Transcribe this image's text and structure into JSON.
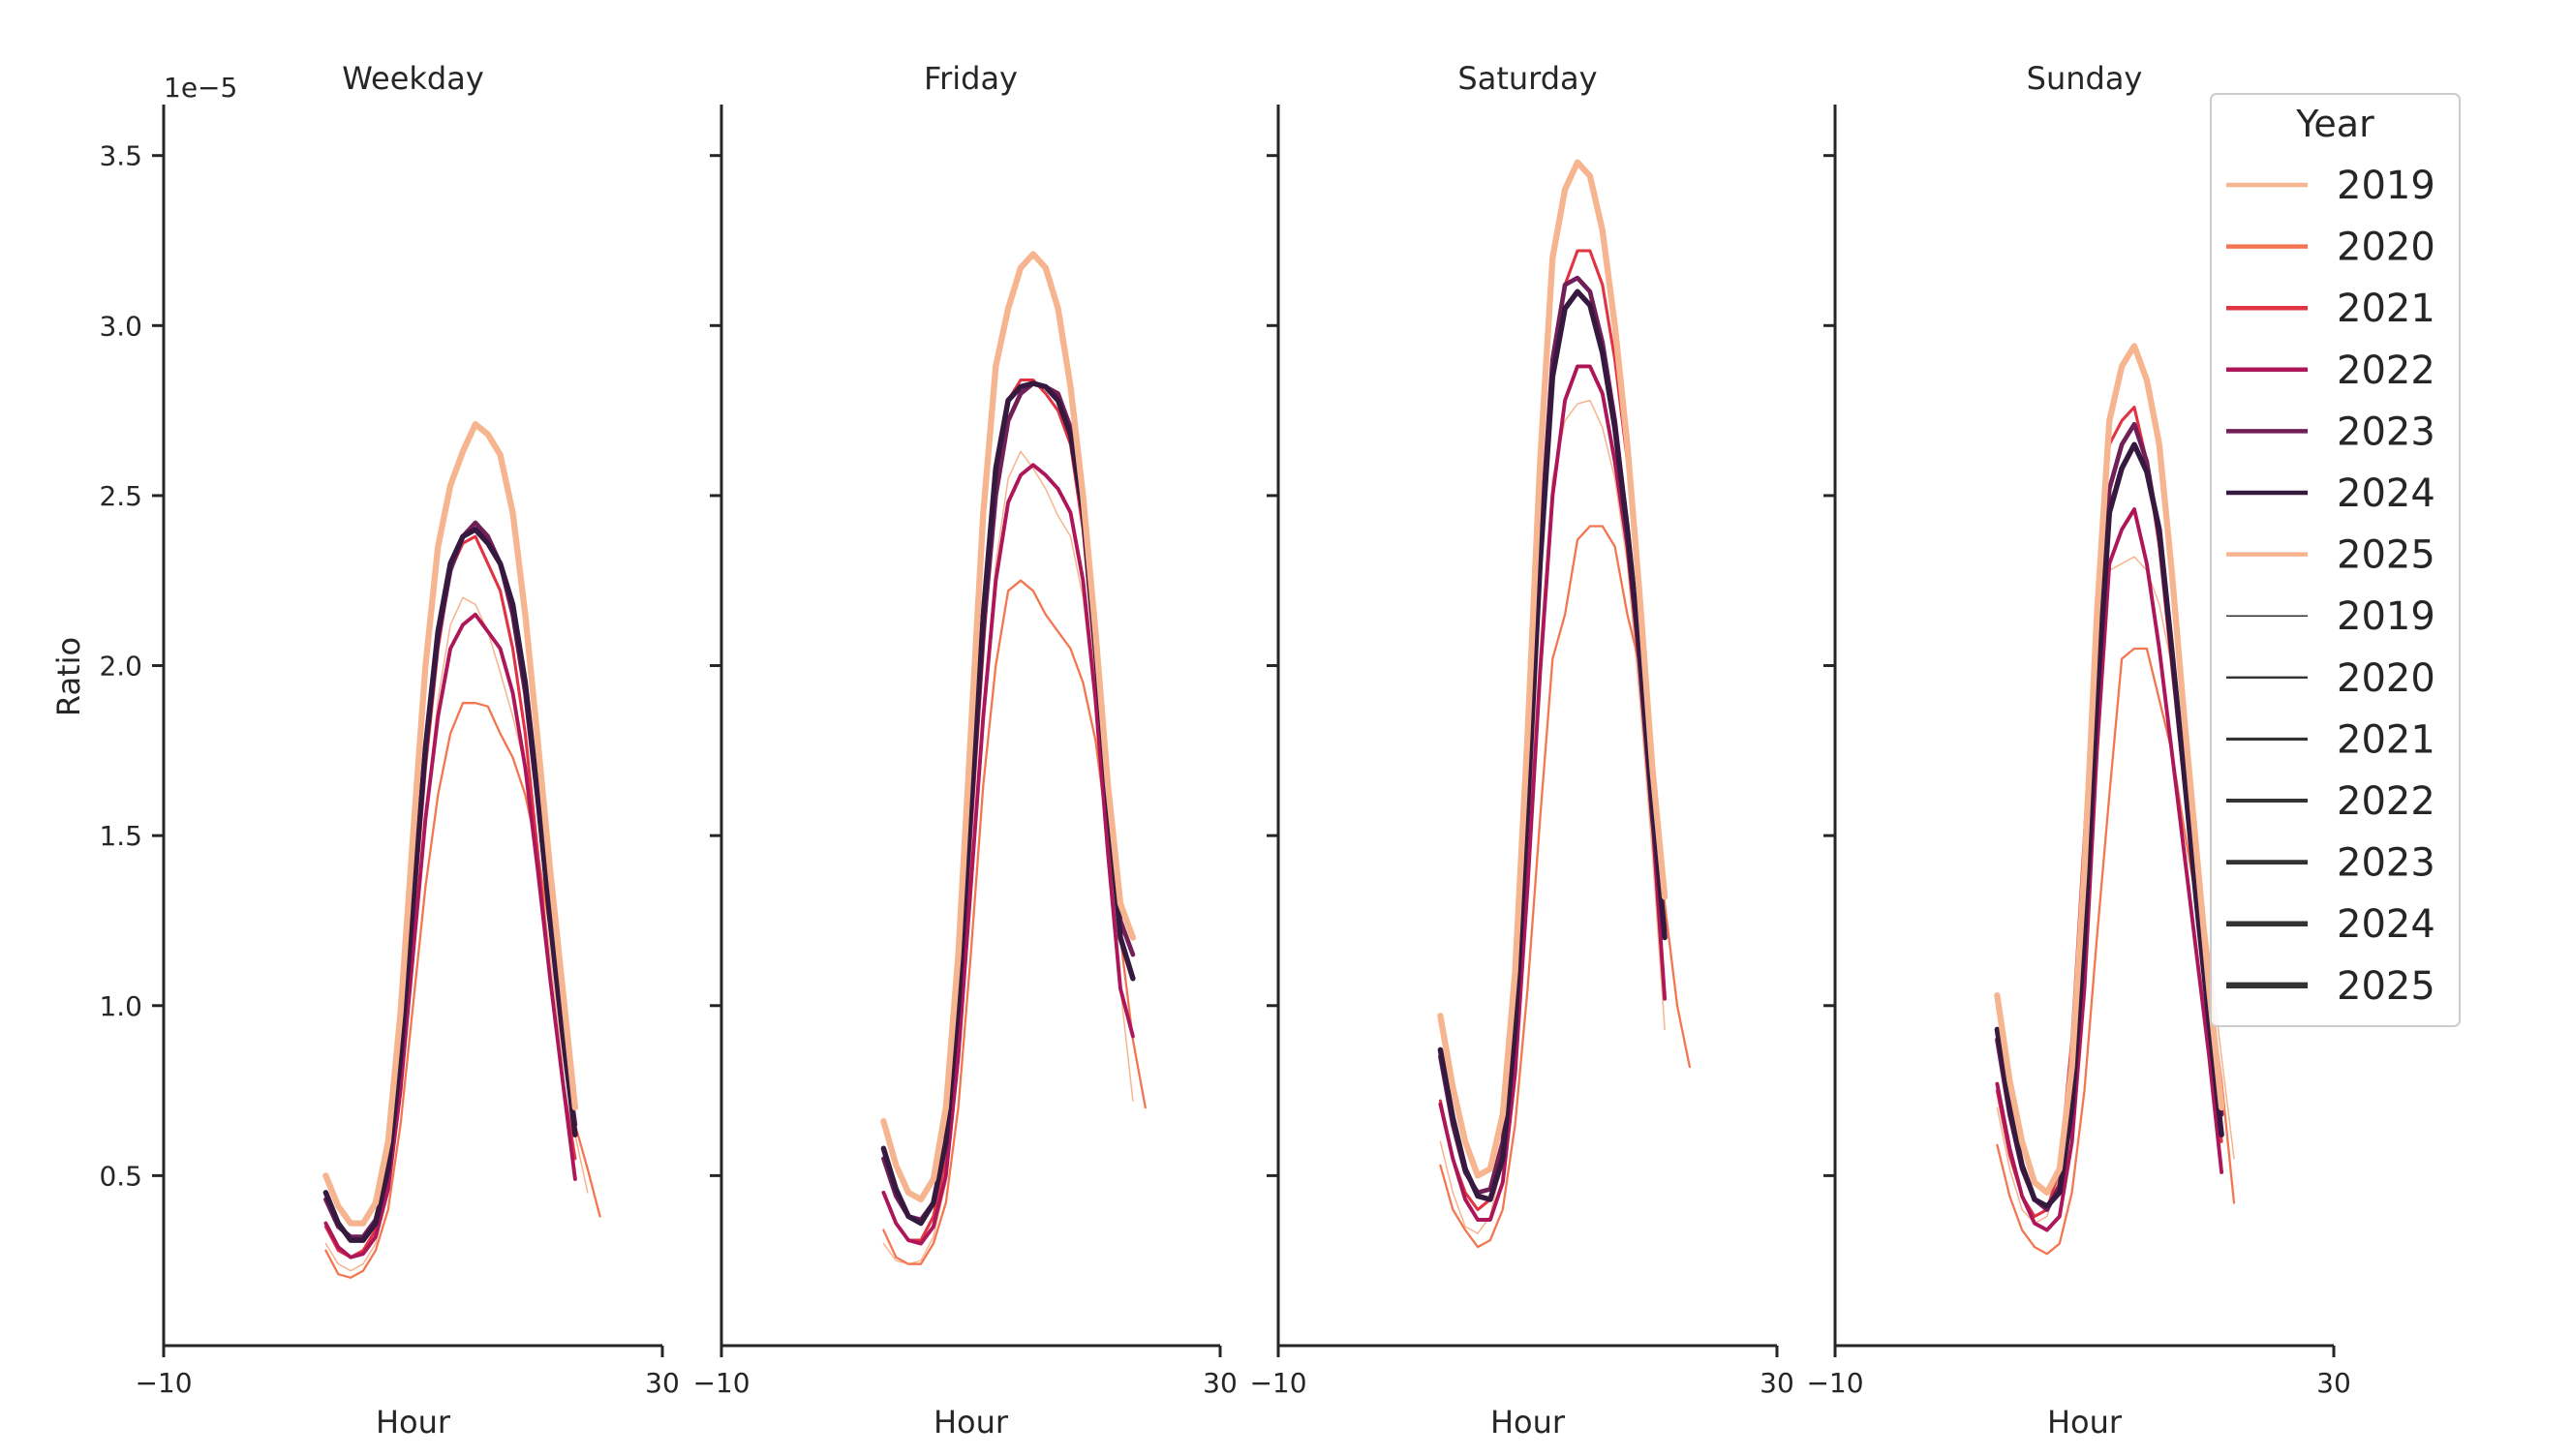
{
  "chart_data": {
    "type": "line",
    "ylabel": "Ratio",
    "xlabel": "Hour",
    "y_scale_label": "1e−5",
    "y_multiplier": 1e-05,
    "xlim": [
      -10,
      30
    ],
    "ylim": [
      0.0,
      3.65
    ],
    "x_ticks": [
      -10,
      30
    ],
    "x_tick_labels": [
      "−10",
      "30"
    ],
    "y_ticks": [
      0.5,
      1.0,
      1.5,
      2.0,
      2.5,
      3.0,
      3.5
    ],
    "y_tick_labels": [
      "0.5",
      "1.0",
      "1.5",
      "2.0",
      "2.5",
      "3.0",
      "3.5"
    ],
    "hours": [
      0,
      1,
      2,
      3,
      4,
      5,
      6,
      7,
      8,
      9,
      10,
      11,
      12,
      13,
      14,
      15,
      16,
      17,
      18,
      19,
      20,
      21,
      22,
      23
    ],
    "legend": {
      "title": "Year",
      "position": "top-right",
      "color_entries": [
        {
          "label": "2019",
          "color": "#f6b48f"
        },
        {
          "label": "2020",
          "color": "#f37651"
        },
        {
          "label": "2021",
          "color": "#e13342"
        },
        {
          "label": "2022",
          "color": "#ad1759"
        },
        {
          "label": "2023",
          "color": "#701f57"
        },
        {
          "label": "2024",
          "color": "#35193e"
        },
        {
          "label": "2025",
          "color": "#f6b48f"
        }
      ],
      "width_entries": [
        {
          "label": "2019",
          "width": 1.5
        },
        {
          "label": "2020",
          "width": 2.3
        },
        {
          "label": "2021",
          "width": 3.1
        },
        {
          "label": "2022",
          "width": 3.9
        },
        {
          "label": "2023",
          "width": 4.7
        },
        {
          "label": "2024",
          "width": 5.5
        },
        {
          "label": "2025",
          "width": 6.3
        }
      ]
    },
    "panels": [
      {
        "title": "Weekday",
        "series": [
          {
            "name": "2019",
            "values": [
              0.3,
              0.24,
              0.22,
              0.24,
              0.3,
              0.45,
              0.75,
              1.15,
              1.55,
              1.9,
              2.12,
              2.2,
              2.18,
              2.1,
              1.98,
              1.85,
              1.7,
              1.45,
              1.15,
              0.85,
              0.62,
              0.45
            ]
          },
          {
            "name": "2020",
            "values": [
              0.28,
              0.21,
              0.2,
              0.22,
              0.28,
              0.4,
              0.65,
              1.0,
              1.35,
              1.62,
              1.8,
              1.89,
              1.89,
              1.88,
              1.8,
              1.73,
              1.62,
              1.45,
              1.22,
              0.92,
              0.65,
              0.52,
              0.38
            ]
          },
          {
            "name": "2021",
            "values": [
              0.35,
              0.28,
              0.26,
              0.28,
              0.34,
              0.5,
              0.82,
              1.25,
              1.7,
              2.05,
              2.28,
              2.36,
              2.38,
              2.3,
              2.22,
              2.05,
              1.8,
              1.45,
              1.08,
              0.78,
              0.55
            ]
          },
          {
            "name": "2022",
            "values": [
              0.36,
              0.29,
              0.26,
              0.27,
              0.32,
              0.46,
              0.75,
              1.15,
              1.55,
              1.85,
              2.05,
              2.12,
              2.15,
              2.1,
              2.05,
              1.92,
              1.7,
              1.4,
              1.08,
              0.78,
              0.49
            ]
          },
          {
            "name": "2023",
            "values": [
              0.43,
              0.35,
              0.32,
              0.32,
              0.37,
              0.52,
              0.85,
              1.3,
              1.75,
              2.08,
              2.28,
              2.38,
              2.42,
              2.38,
              2.3,
              2.15,
              1.92,
              1.6,
              1.25,
              0.92,
              0.65
            ]
          },
          {
            "name": "2024",
            "values": [
              0.45,
              0.36,
              0.31,
              0.31,
              0.36,
              0.52,
              0.85,
              1.3,
              1.76,
              2.1,
              2.3,
              2.38,
              2.4,
              2.36,
              2.3,
              2.18,
              1.95,
              1.62,
              1.25,
              0.92,
              0.62
            ]
          },
          {
            "name": "2025",
            "values": [
              0.5,
              0.41,
              0.36,
              0.36,
              0.42,
              0.6,
              0.98,
              1.5,
              2.0,
              2.35,
              2.53,
              2.63,
              2.71,
              2.68,
              2.62,
              2.45,
              2.15,
              1.78,
              1.4,
              1.05,
              0.7
            ]
          }
        ]
      },
      {
        "title": "Friday",
        "series": [
          {
            "name": "2019",
            "values": [
              0.3,
              0.25,
              0.24,
              0.25,
              0.32,
              0.48,
              0.82,
              1.3,
              1.85,
              2.3,
              2.55,
              2.63,
              2.58,
              2.52,
              2.44,
              2.38,
              2.2,
              1.88,
              1.5,
              1.05,
              0.72
            ]
          },
          {
            "name": "2020",
            "values": [
              0.34,
              0.26,
              0.24,
              0.24,
              0.3,
              0.42,
              0.7,
              1.15,
              1.65,
              2.0,
              2.22,
              2.25,
              2.22,
              2.15,
              2.1,
              2.05,
              1.95,
              1.78,
              1.5,
              1.2,
              0.9,
              0.7
            ]
          },
          {
            "name": "2021",
            "values": [
              0.45,
              0.36,
              0.31,
              0.31,
              0.38,
              0.55,
              0.92,
              1.5,
              2.05,
              2.55,
              2.78,
              2.84,
              2.84,
              2.8,
              2.75,
              2.65,
              2.4,
              2.0,
              1.55,
              1.2
            ]
          },
          {
            "name": "2022",
            "values": [
              0.45,
              0.36,
              0.31,
              0.3,
              0.35,
              0.5,
              0.85,
              1.35,
              1.85,
              2.25,
              2.48,
              2.56,
              2.59,
              2.56,
              2.52,
              2.45,
              2.25,
              1.9,
              1.45,
              1.05,
              0.91
            ]
          },
          {
            "name": "2023",
            "values": [
              0.55,
              0.44,
              0.38,
              0.37,
              0.42,
              0.6,
              1.0,
              1.55,
              2.1,
              2.5,
              2.72,
              2.8,
              2.83,
              2.82,
              2.8,
              2.7,
              2.48,
              2.1,
              1.62,
              1.25,
              1.15
            ]
          },
          {
            "name": "2024",
            "values": [
              0.58,
              0.46,
              0.38,
              0.36,
              0.42,
              0.6,
              1.0,
              1.58,
              2.15,
              2.58,
              2.78,
              2.82,
              2.83,
              2.82,
              2.78,
              2.68,
              2.45,
              2.05,
              1.6,
              1.2,
              1.08
            ]
          },
          {
            "name": "2025",
            "values": [
              0.66,
              0.53,
              0.45,
              0.43,
              0.49,
              0.7,
              1.15,
              1.8,
              2.45,
              2.88,
              3.05,
              3.17,
              3.21,
              3.17,
              3.05,
              2.82,
              2.5,
              2.1,
              1.65,
              1.3,
              1.2
            ]
          }
        ]
      },
      {
        "title": "Saturday",
        "series": [
          {
            "name": "2019",
            "values": [
              0.6,
              0.45,
              0.35,
              0.33,
              0.38,
              0.55,
              0.92,
              1.45,
              2.05,
              2.55,
              2.72,
              2.77,
              2.78,
              2.7,
              2.55,
              2.3,
              1.9,
              1.45,
              0.93
            ]
          },
          {
            "name": "2020",
            "values": [
              0.53,
              0.4,
              0.34,
              0.29,
              0.31,
              0.4,
              0.65,
              1.05,
              1.55,
              2.02,
              2.15,
              2.37,
              2.41,
              2.41,
              2.35,
              2.15,
              2.0,
              1.7,
              1.3,
              1.0,
              0.82
            ]
          },
          {
            "name": "2021",
            "values": [
              0.72,
              0.55,
              0.45,
              0.4,
              0.43,
              0.58,
              0.98,
              1.6,
              2.25,
              2.88,
              3.12,
              3.22,
              3.22,
              3.12,
              2.9,
              2.6,
              2.2,
              1.7,
              1.2
            ]
          },
          {
            "name": "2022",
            "values": [
              0.71,
              0.55,
              0.43,
              0.37,
              0.37,
              0.48,
              0.8,
              1.35,
              1.98,
              2.5,
              2.78,
              2.88,
              2.88,
              2.8,
              2.6,
              2.35,
              2.0,
              1.55,
              1.02
            ]
          },
          {
            "name": "2023",
            "values": [
              0.85,
              0.65,
              0.51,
              0.45,
              0.46,
              0.6,
              1.0,
              1.65,
              2.35,
              2.9,
              3.12,
              3.14,
              3.1,
              2.95,
              2.72,
              2.4,
              2.0,
              1.55,
              1.22
            ]
          },
          {
            "name": "2024",
            "values": [
              0.87,
              0.67,
              0.52,
              0.44,
              0.43,
              0.55,
              0.93,
              1.58,
              2.3,
              2.85,
              3.05,
              3.1,
              3.06,
              2.92,
              2.7,
              2.4,
              2.05,
              1.6,
              1.2
            ]
          },
          {
            "name": "2025",
            "values": [
              0.97,
              0.76,
              0.6,
              0.5,
              0.52,
              0.68,
              1.1,
              1.8,
              2.6,
              3.2,
              3.4,
              3.48,
              3.44,
              3.28,
              3.0,
              2.65,
              2.2,
              1.7,
              1.32
            ]
          }
        ]
      },
      {
        "title": "Sunday",
        "series": [
          {
            "name": "2019",
            "values": [
              0.7,
              0.52,
              0.4,
              0.36,
              0.38,
              0.5,
              0.85,
              1.4,
              2.0,
              2.28,
              2.3,
              2.32,
              2.28,
              2.18,
              2.0,
              1.75,
              1.45,
              1.15,
              0.85,
              0.55
            ]
          },
          {
            "name": "2020",
            "values": [
              0.59,
              0.44,
              0.34,
              0.29,
              0.27,
              0.3,
              0.45,
              0.75,
              1.2,
              1.62,
              2.02,
              2.05,
              2.05,
              1.9,
              1.75,
              1.52,
              1.3,
              1.05,
              0.78,
              0.42
            ]
          },
          {
            "name": "2021",
            "values": [
              0.75,
              0.56,
              0.44,
              0.38,
              0.4,
              0.52,
              0.9,
              1.5,
              2.15,
              2.65,
              2.72,
              2.76,
              2.6,
              2.35,
              2.0,
              1.65,
              1.3,
              0.95,
              0.6
            ]
          },
          {
            "name": "2022",
            "values": [
              0.77,
              0.58,
              0.44,
              0.36,
              0.34,
              0.38,
              0.6,
              1.05,
              1.75,
              2.3,
              2.4,
              2.46,
              2.3,
              2.05,
              1.75,
              1.45,
              1.15,
              0.85,
              0.51
            ]
          },
          {
            "name": "2023",
            "values": [
              0.9,
              0.68,
              0.52,
              0.43,
              0.4,
              0.47,
              0.72,
              1.25,
              1.95,
              2.52,
              2.65,
              2.71,
              2.6,
              2.38,
              2.05,
              1.7,
              1.35,
              1.0,
              0.68
            ]
          },
          {
            "name": "2024",
            "values": [
              0.93,
              0.7,
              0.53,
              0.43,
              0.41,
              0.45,
              0.7,
              1.2,
              1.9,
              2.45,
              2.58,
              2.65,
              2.57,
              2.4,
              2.05,
              1.68,
              1.3,
              0.95,
              0.62
            ]
          },
          {
            "name": "2025",
            "values": [
              1.03,
              0.78,
              0.6,
              0.48,
              0.45,
              0.52,
              0.82,
              1.4,
              2.15,
              2.72,
              2.88,
              2.94,
              2.84,
              2.65,
              2.28,
              1.85,
              1.45,
              1.05,
              0.7
            ]
          }
        ]
      }
    ]
  }
}
